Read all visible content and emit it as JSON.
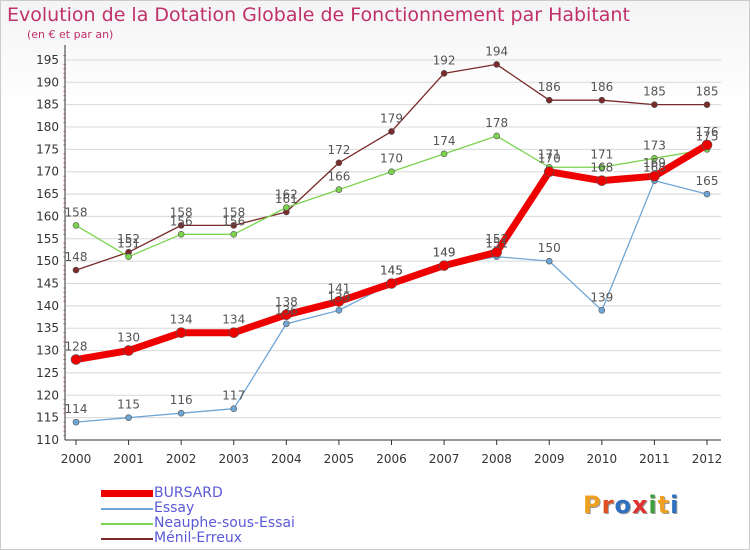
{
  "title": "Evolution de la Dotation Globale de Fonctionnement par Habitant",
  "subtitle": "(en € et par an)",
  "logo": {
    "text": "Proxiti",
    "letters": [
      {
        "ch": "P",
        "color": "#f0a020"
      },
      {
        "ch": "r",
        "color": "#e05020"
      },
      {
        "ch": "o",
        "color": "#3070c0"
      },
      {
        "ch": "x",
        "color": "#e03030"
      },
      {
        "ch": "i",
        "color": "#40a040"
      },
      {
        "ch": "t",
        "color": "#f0a020"
      },
      {
        "ch": "i",
        "color": "#3070c0"
      }
    ]
  },
  "colors": {
    "title": "#c0306a",
    "axis": "#333333",
    "grid": "#d8d8d8",
    "tick_minor": "#e8a0a0",
    "value_label": "#555555",
    "legend_text": "#5a5ad8"
  },
  "chart_data": {
    "type": "line",
    "title": "Evolution de la Dotation Globale de Fonctionnement par Habitant",
    "subtitle": "(en € et par an)",
    "xlabel": "",
    "ylabel": "",
    "x": [
      "2000",
      "2001",
      "2002",
      "2003",
      "2004",
      "2005",
      "2006",
      "2007",
      "2008",
      "2009",
      "2010",
      "2011",
      "2012"
    ],
    "ylim": [
      110,
      197
    ],
    "yticks": [
      110,
      115,
      120,
      125,
      130,
      135,
      140,
      145,
      150,
      155,
      160,
      165,
      170,
      175,
      180,
      185,
      190,
      195
    ],
    "grid": true,
    "legend_position": "bottom-left",
    "series": [
      {
        "name": "BURSARD",
        "color": "#ee0000",
        "width": 7,
        "marker": 5,
        "values": [
          128,
          130,
          134,
          134,
          138,
          141,
          145,
          149,
          152,
          170,
          168,
          169,
          176
        ]
      },
      {
        "name": "Essay",
        "color": "#6fa6d6",
        "width": 1.3,
        "marker": 3,
        "values": [
          114,
          115,
          116,
          117,
          136,
          139,
          145,
          149,
          151,
          150,
          139,
          168,
          165
        ]
      },
      {
        "name": "Neauphe-sous-Essai",
        "color": "#7bd34e",
        "width": 1.3,
        "marker": 3,
        "values": [
          158,
          151,
          156,
          156,
          162,
          166,
          170,
          174,
          178,
          171,
          171,
          173,
          175
        ]
      },
      {
        "name": "Ménil-Erreux",
        "color": "#7a2a2a",
        "width": 1.3,
        "marker": 3,
        "values": [
          148,
          152,
          158,
          158,
          161,
          172,
          179,
          192,
          194,
          186,
          186,
          185,
          185
        ]
      }
    ]
  }
}
